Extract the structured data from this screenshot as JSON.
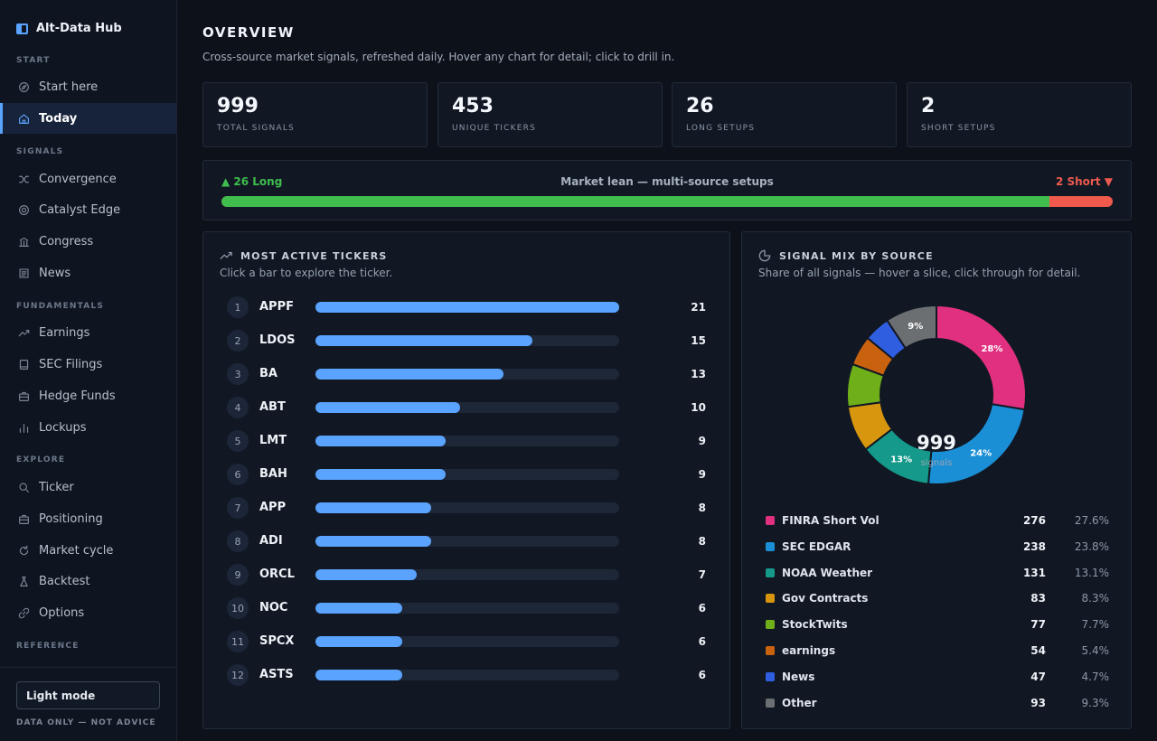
{
  "app": {
    "name": "Alt-Data Hub"
  },
  "sidebar": {
    "sections": [
      {
        "label": "START",
        "items": [
          {
            "label": "Start here",
            "icon": "compass-icon"
          },
          {
            "label": "Today",
            "icon": "home-icon",
            "active": true
          }
        ]
      },
      {
        "label": "SIGNALS",
        "items": [
          {
            "label": "Convergence",
            "icon": "shuffle-icon"
          },
          {
            "label": "Catalyst Edge",
            "icon": "target-icon"
          },
          {
            "label": "Congress",
            "icon": "capitol-icon"
          },
          {
            "label": "News",
            "icon": "newspaper-icon"
          }
        ]
      },
      {
        "label": "FUNDAMENTALS",
        "items": [
          {
            "label": "Earnings",
            "icon": "trend-up-icon"
          },
          {
            "label": "SEC Filings",
            "icon": "book-icon"
          },
          {
            "label": "Hedge Funds",
            "icon": "briefcase-icon"
          },
          {
            "label": "Lockups",
            "icon": "bar-chart-icon"
          }
        ]
      },
      {
        "label": "EXPLORE",
        "items": [
          {
            "label": "Ticker",
            "icon": "search-icon"
          },
          {
            "label": "Positioning",
            "icon": "briefcase-icon"
          },
          {
            "label": "Market cycle",
            "icon": "refresh-icon"
          },
          {
            "label": "Backtest",
            "icon": "flask-icon"
          },
          {
            "label": "Options",
            "icon": "link-icon"
          }
        ]
      },
      {
        "label": "REFERENCE",
        "items": []
      }
    ],
    "light_mode_label": "Light mode",
    "disclaimer": "DATA ONLY — NOT ADVICE"
  },
  "header": {
    "title": "OVERVIEW",
    "subtitle": "Cross-source market signals, refreshed daily. Hover any chart for detail; click to drill in."
  },
  "kpis": [
    {
      "value": "999",
      "label": "TOTAL SIGNALS"
    },
    {
      "value": "453",
      "label": "UNIQUE TICKERS"
    },
    {
      "value": "26",
      "label": "LONG SETUPS"
    },
    {
      "value": "2",
      "label": "SHORT SETUPS"
    }
  ],
  "market_lean": {
    "long_label": "▲ 26 Long",
    "title": "Market lean — multi-source setups",
    "short_label": "2 Short ▼",
    "long": 26,
    "short": 2,
    "long_color": "#3fbd4d",
    "short_color": "#ef5a4d"
  },
  "most_active": {
    "title": "MOST ACTIVE TICKERS",
    "subtitle": "Click a bar to explore the ticker.",
    "max": 21,
    "rows": [
      {
        "rank": "1",
        "ticker": "APPF",
        "count": 21
      },
      {
        "rank": "2",
        "ticker": "LDOS",
        "count": 15
      },
      {
        "rank": "3",
        "ticker": "BA",
        "count": 13
      },
      {
        "rank": "4",
        "ticker": "ABT",
        "count": 10
      },
      {
        "rank": "5",
        "ticker": "LMT",
        "count": 9
      },
      {
        "rank": "6",
        "ticker": "BAH",
        "count": 9
      },
      {
        "rank": "7",
        "ticker": "APP",
        "count": 8
      },
      {
        "rank": "8",
        "ticker": "ADI",
        "count": 8
      },
      {
        "rank": "9",
        "ticker": "ORCL",
        "count": 7
      },
      {
        "rank": "10",
        "ticker": "NOC",
        "count": 6
      },
      {
        "rank": "11",
        "ticker": "SPCX",
        "count": 6
      },
      {
        "rank": "12",
        "ticker": "ASTS",
        "count": 6
      }
    ]
  },
  "signal_mix": {
    "title": "SIGNAL MIX BY SOURCE",
    "subtitle": "Share of all signals — hover a slice, click through for detail.",
    "center_value": "999",
    "center_label": "signals"
  },
  "chart_data": {
    "type": "pie",
    "categories": [
      "FINRA Short Vol",
      "SEC EDGAR",
      "NOAA Weather",
      "Gov Contracts",
      "StockTwits",
      "earnings",
      "News",
      "Other"
    ],
    "values": [
      276,
      238,
      131,
      83,
      77,
      54,
      47,
      93
    ],
    "percents": [
      "27.6%",
      "23.8%",
      "13.1%",
      "8.3%",
      "7.7%",
      "5.4%",
      "4.7%",
      "9.3%"
    ],
    "slice_labels": [
      "28%",
      "24%",
      "13%",
      "",
      "",
      "",
      "",
      "9%"
    ],
    "colors": [
      "#e0307f",
      "#1a8fd6",
      "#14998a",
      "#d8960e",
      "#6fb01a",
      "#c9620f",
      "#2f5fe0",
      "#6b6f72"
    ],
    "legend_placement": "bottom"
  }
}
